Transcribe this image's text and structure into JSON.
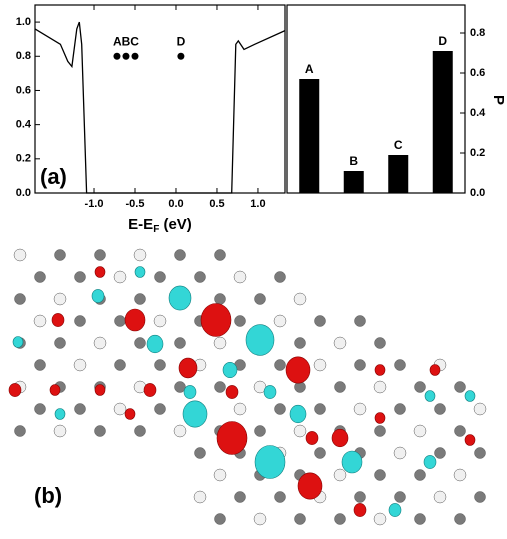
{
  "panel_labels": [
    "(a)",
    "(b)"
  ],
  "chart_data": [
    {
      "type": "line",
      "xlabel": [
        "E-E",
        "F",
        " (eV)"
      ],
      "xlim": [
        -1.72,
        1.33
      ],
      "xticks": [
        {
          "value": -1,
          "label": "-1.0"
        },
        {
          "value": -0.5,
          "label": "-0.5"
        },
        {
          "value": 0,
          "label": "0.0"
        },
        {
          "value": 0.5,
          "label": "0.5"
        },
        {
          "value": 1,
          "label": "1.0"
        }
      ],
      "ylim": [
        0,
        1.1
      ],
      "yticks": [
        {
          "value": 0,
          "label": "0.0"
        },
        {
          "value": 0.2,
          "label": "0.2"
        },
        {
          "value": 0.4,
          "label": "0.4"
        },
        {
          "value": 0.6,
          "label": "0.6"
        },
        {
          "value": 0.8,
          "label": "0.8"
        },
        {
          "value": 1,
          "label": "1.0"
        }
      ],
      "series": [
        {
          "color": "#000000",
          "x": [
            -1.72,
            -1.41,
            -1.32,
            -1.27,
            -1.21,
            -1.18,
            -1.15,
            -1.09,
            0.68,
            0.73,
            0.76,
            0.83,
            0.96,
            1.33
          ],
          "values": [
            0.96,
            0.87,
            0.77,
            0.74,
            0.96,
            1.0,
            0.87,
            0,
            0,
            0.87,
            0.89,
            0.84,
            0.87,
            0.95
          ]
        },
        {
          "color": "#000000",
          "marker": "circle",
          "x": [
            -0.72,
            -0.61,
            -0.5,
            0.06
          ],
          "values": [
            0.8,
            0.8,
            0.8,
            0.8
          ]
        }
      ],
      "annotations": [
        "ABC",
        "D"
      ]
    },
    {
      "type": "bar",
      "categories": [
        "A",
        "B",
        "C",
        "D"
      ],
      "values": [
        0.57,
        0.11,
        0.19,
        0.71
      ],
      "color": "#000000",
      "ylabel": "P",
      "ylim": [
        0,
        0.94
      ],
      "yticks": [
        {
          "value": 0,
          "label": "0.0"
        },
        {
          "value": 0.2,
          "label": "0.2"
        },
        {
          "value": 0.4,
          "label": "0.4"
        },
        {
          "value": 0.6,
          "label": "0.6"
        },
        {
          "value": 0.8,
          "label": "0.8"
        }
      ]
    }
  ]
}
